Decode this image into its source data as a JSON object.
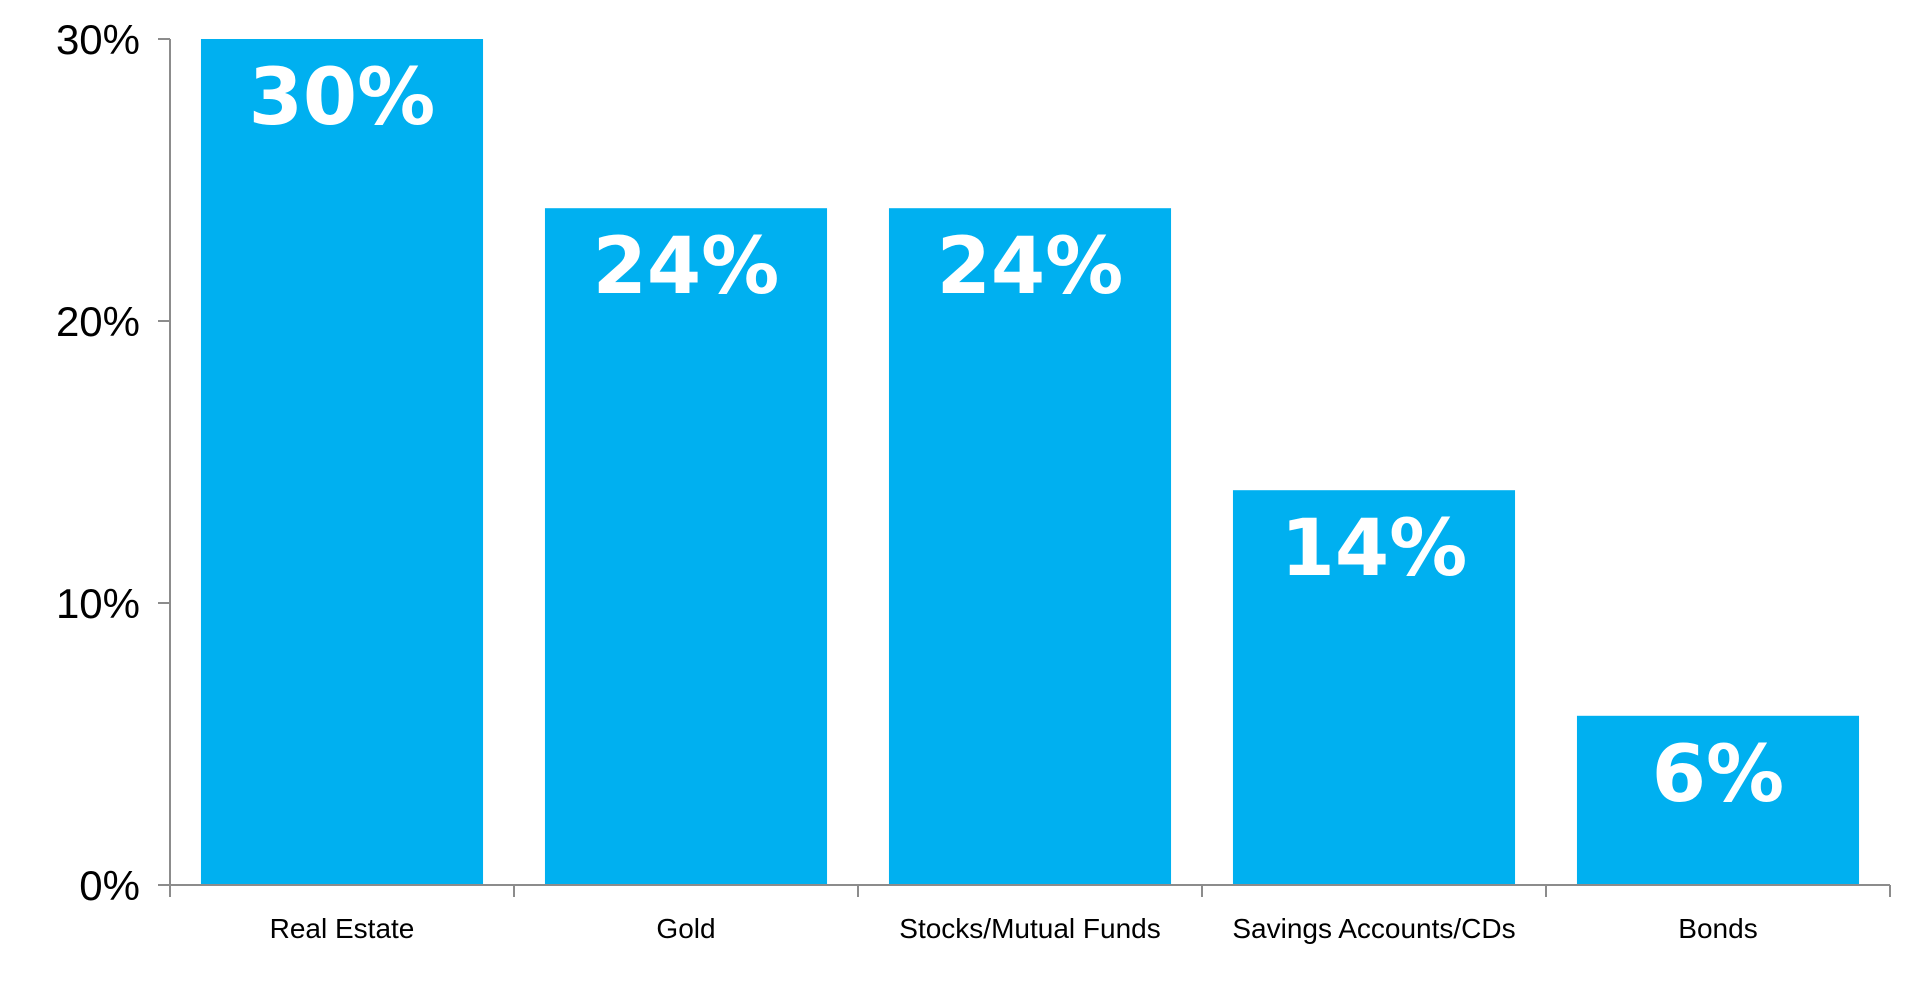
{
  "chart_data": {
    "type": "bar",
    "categories": [
      "Real Estate",
      "Gold",
      "Stocks/Mutual Funds",
      "Savings Accounts/CDs",
      "Bonds"
    ],
    "values": [
      30,
      24,
      24,
      14,
      6
    ],
    "data_labels": [
      "30%",
      "24%",
      "24%",
      "14%",
      "6%"
    ],
    "title": "",
    "xlabel": "",
    "ylabel": "",
    "ylim": [
      0,
      30
    ],
    "yticks": [
      0,
      10,
      20,
      30
    ],
    "ytick_labels": [
      "0%",
      "10%",
      "20%",
      "30%"
    ],
    "grid": false,
    "legend": "none",
    "bar_color": "#00b0f0",
    "axis_color": "#8c8c8c",
    "label_color": "#ffffff"
  }
}
